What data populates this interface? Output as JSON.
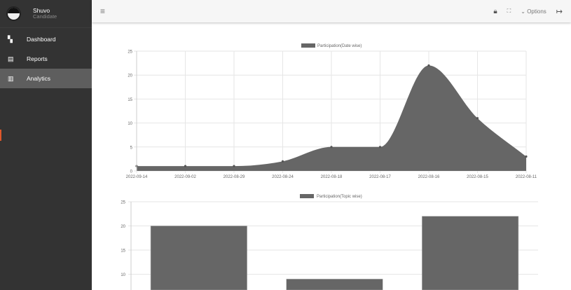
{
  "user": {
    "name": "Shuvo",
    "role": "Candidate"
  },
  "sidebar": {
    "items": [
      {
        "label": "Dashboard",
        "icon": "dashboard-icon",
        "active": false
      },
      {
        "label": "Reports",
        "icon": "document-icon",
        "active": false
      },
      {
        "label": "Analytics",
        "icon": "chart-icon",
        "active": true
      }
    ]
  },
  "header": {
    "options_label": "Options"
  },
  "colors": {
    "sidebar": "#333333",
    "active": "#5e5e5e",
    "series": "#666666",
    "accent": "#e0572a"
  },
  "chart_data": [
    {
      "type": "area",
      "legend": "Participation(Date wise)",
      "legend_position": "top",
      "categories": [
        "2022-09-14",
        "2022-09-02",
        "2022-08-29",
        "2022-08-24",
        "2022-08-18",
        "2022-08-17",
        "2022-08-16",
        "2022-08-15",
        "2022-08-11"
      ],
      "values": [
        1,
        1,
        1,
        2,
        5,
        5,
        22,
        11,
        3
      ],
      "ylim": [
        0,
        25
      ],
      "yticks": [
        0,
        5,
        10,
        15,
        20,
        25
      ],
      "grid": true
    },
    {
      "type": "bar",
      "legend": "Participation(Topic wise)",
      "legend_position": "top",
      "values": [
        20,
        9,
        22
      ],
      "ylim": [
        0,
        25
      ],
      "yticks": [
        10,
        15,
        20,
        25
      ],
      "grid": true
    }
  ]
}
